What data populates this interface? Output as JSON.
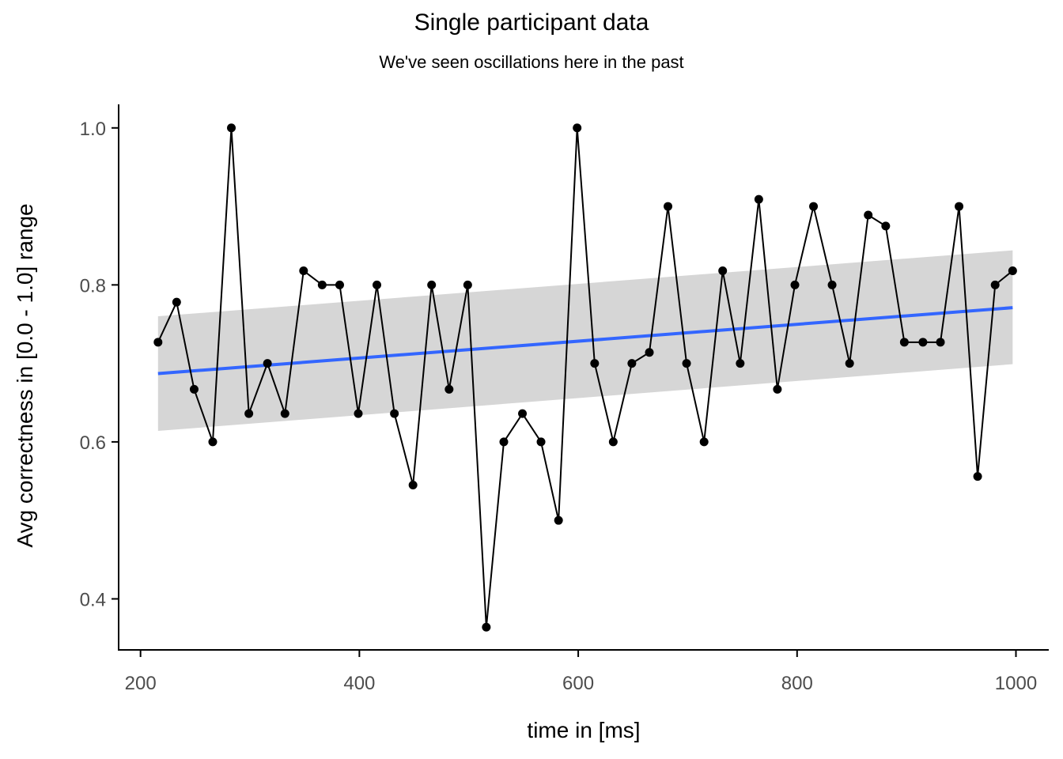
{
  "chart_data": {
    "type": "line",
    "title": "Single participant data",
    "subtitle": "We've seen oscillations here in the past",
    "xlabel": "time in [ms]",
    "ylabel": "Avg correctness in [0.0 - 1.0] range",
    "xlim": [
      180,
      1030
    ],
    "ylim": [
      0.335,
      1.03
    ],
    "xticks": [
      200,
      400,
      600,
      800,
      1000
    ],
    "xtick_labels": [
      "200",
      "400",
      "600",
      "800",
      "1000"
    ],
    "yticks": [
      0.4,
      0.6,
      0.8,
      1.0
    ],
    "ytick_labels": [
      "0.4",
      "0.6",
      "0.8",
      "1.0"
    ],
    "grid": false,
    "series": [
      {
        "x": [
          216,
          233,
          249,
          266,
          283,
          299,
          316,
          332,
          349,
          366,
          382,
          399,
          416,
          432,
          449,
          466,
          482,
          499,
          516,
          532,
          549,
          566,
          582,
          599,
          615,
          632,
          649,
          665,
          682,
          699,
          715,
          732,
          748,
          765,
          782,
          798,
          815,
          832,
          848,
          865,
          881,
          898,
          915,
          931,
          948,
          965,
          981,
          997
        ],
        "y": [
          0.727,
          0.778,
          0.667,
          0.6,
          1.0,
          0.636,
          0.7,
          0.636,
          0.818,
          0.8,
          0.8,
          0.636,
          0.8,
          0.636,
          0.545,
          0.8,
          0.667,
          0.8,
          0.364,
          0.6,
          0.636,
          0.6,
          0.5,
          1.0,
          0.7,
          0.6,
          0.7,
          0.714,
          0.9,
          0.7,
          0.6,
          0.818,
          0.7,
          0.909,
          0.667,
          0.8,
          0.9,
          0.8,
          0.7,
          0.889,
          0.875,
          0.727,
          0.727,
          0.727,
          0.9,
          0.556,
          0.8,
          0.818
        ],
        "color": "#000000"
      }
    ],
    "trend": {
      "method": "linear",
      "x_start": 216,
      "x_end": 997,
      "y_start": 0.687,
      "y_end": 0.771,
      "ci_lower_start": 0.614,
      "ci_upper_start": 0.76,
      "ci_lower_end": 0.699,
      "ci_upper_end": 0.844,
      "line_color": "#3366FF",
      "ribbon_color": "#d4d4d4"
    }
  }
}
